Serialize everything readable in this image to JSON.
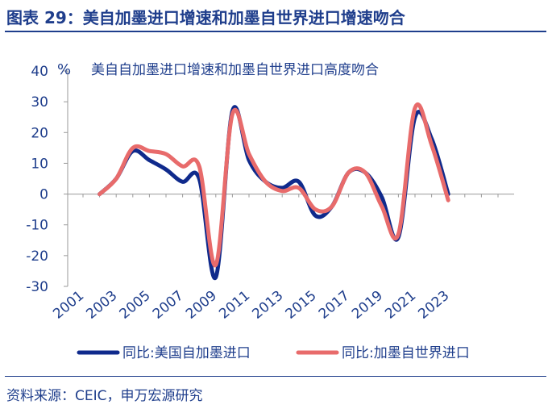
{
  "figure": {
    "title": "图表 29：美自加墨进口增速和加墨自世界进口增速吻合",
    "source": "资料来源：CEIC，申万宏源研究"
  },
  "chart_data": {
    "type": "line",
    "subtitle": "美自自加墨进口增速和加墨自世界进口高度吻合",
    "ylabel": "%",
    "xlabel": "",
    "ylim": [
      -30,
      40
    ],
    "yticks": [
      -30,
      -20,
      -10,
      0,
      10,
      20,
      30,
      40
    ],
    "x": [
      2002,
      2003,
      2004,
      2005,
      2006,
      2007,
      2008,
      2009,
      2010,
      2011,
      2012,
      2013,
      2014,
      2015,
      2016,
      2017,
      2018,
      2019,
      2020,
      2021,
      2022,
      2023
    ],
    "xticks": [
      "2001",
      "2003",
      "2005",
      "2007",
      "2009",
      "2011",
      "2013",
      "2015",
      "2017",
      "2019",
      "2021",
      "2023"
    ],
    "grid": false,
    "legend_position": "bottom",
    "series": [
      {
        "name": "同比:美国自加墨进口",
        "color": "#0f2a8c",
        "values": [
          0,
          5,
          14,
          11,
          8,
          4,
          5,
          -27,
          27,
          11,
          4,
          2,
          4,
          -7,
          -4,
          7,
          7,
          -1,
          -14,
          25,
          18,
          0
        ]
      },
      {
        "name": "同比:加墨自世界进口",
        "color": "#e86b6b",
        "values": [
          0,
          5,
          15,
          14,
          13,
          9,
          9,
          -23,
          26,
          13,
          4,
          1,
          2,
          -5,
          -4,
          7,
          7,
          -4,
          -13,
          28,
          16,
          -2
        ]
      }
    ]
  }
}
